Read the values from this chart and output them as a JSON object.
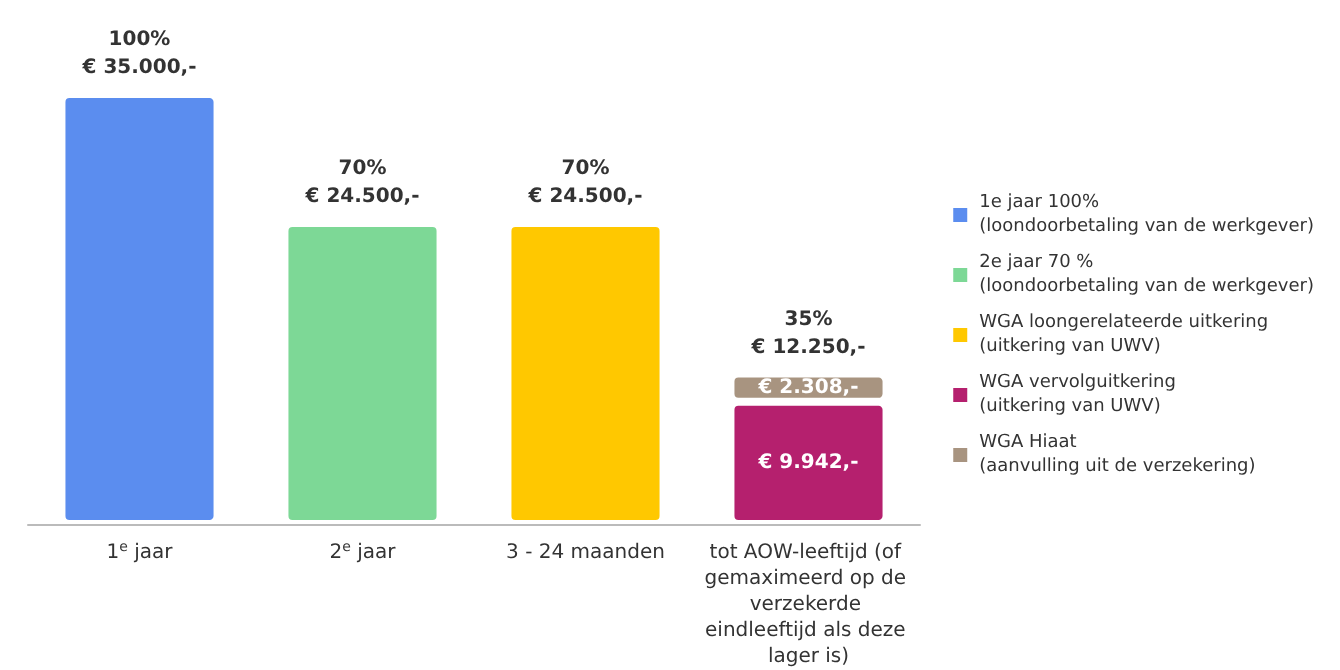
{
  "chart_data": {
    "type": "bar",
    "stacked": true,
    "legend": "right",
    "tick_labels": "x",
    "categories": [
      "1$^{e}$ jaar",
      "2$^{e}$ jaar",
      "3 - 24 maanden",
      "tot AOW-leeftijd (of gemaximeerd op de verzekerde eindleeftijd als deze lager is)"
    ],
    "totals": [
      "100%\n€ 35.000,-",
      "70%\n€ 24.500,-",
      "70%\n€ 24.500,-",
      "35%\n€ 12.250,-"
    ],
    "series": [
      {
        "name": "1e jaar 100%\n(loondoorbetaling van de werkgever)",
        "color": "#5b8def",
        "values": [
          35000,
          null,
          null,
          null
        ]
      },
      {
        "name": "2e jaar 70 %\n(loondoorbetaling van de werkgever)",
        "color": "#7dd896",
        "values": [
          null,
          24500,
          null,
          null
        ]
      },
      {
        "name": "WGA loongerelateerde uitkering\n(uitkering van UWV)",
        "color": "#ffc800",
        "values": [
          null,
          null,
          24500,
          null
        ]
      },
      {
        "name": "WGA vervolguitkering\n(uitkering van UWV)",
        "color": "#b5206e",
        "values": [
          null,
          null,
          null,
          9942
        ],
        "value_labels": [
          null,
          null,
          null,
          "€ 9.942,-"
        ]
      },
      {
        "name": "WGA Hiaat\n(aanvulling uit de verzekering)",
        "color": "#a89480",
        "values": [
          null,
          null,
          null,
          2308
        ],
        "value_labels": [
          null,
          null,
          null,
          "€ 2.308,-"
        ]
      }
    ]
  }
}
